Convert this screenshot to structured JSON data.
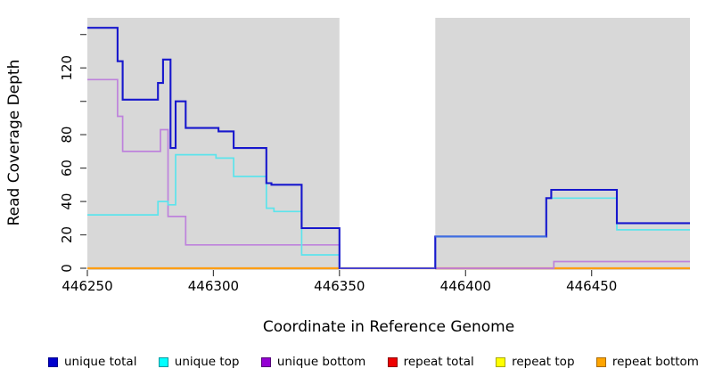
{
  "chart_data": {
    "type": "line",
    "subtype": "step-coverage",
    "title": "",
    "xlabel": "Coordinate in Reference Genome",
    "ylabel": "Read Coverage Depth",
    "xlim": [
      446250,
      446489
    ],
    "ylim": [
      0,
      150
    ],
    "x_ticks": [
      446250,
      446300,
      446350,
      446400,
      446450
    ],
    "y_ticks": [
      0,
      20,
      40,
      60,
      80,
      100,
      120,
      140
    ],
    "y_tick_labels": [
      "0",
      "20",
      "40",
      "60",
      "80",
      "",
      "120",
      ""
    ],
    "grid": false,
    "legend_position": "bottom",
    "background_shading": {
      "color": "#d8d8d8",
      "regions": [
        [
          446250,
          446350
        ],
        [
          446388,
          446489
        ]
      ]
    },
    "series": [
      {
        "name": "unique total",
        "line_color": "#1717cd",
        "legend_fill": "#0000cd",
        "legend_border": "#00008b",
        "lw": 2.1,
        "points": [
          [
            446250,
            144
          ],
          [
            446262,
            124
          ],
          [
            446264,
            101
          ],
          [
            446278,
            111
          ],
          [
            446280,
            125
          ],
          [
            446283,
            72
          ],
          [
            446285,
            100
          ],
          [
            446289,
            84
          ],
          [
            446302,
            82
          ],
          [
            446308,
            72
          ],
          [
            446321,
            51
          ],
          [
            446323,
            50
          ],
          [
            446335,
            24
          ],
          [
            446350,
            0
          ],
          [
            446388,
            19
          ],
          [
            446432,
            42
          ],
          [
            446434,
            47
          ],
          [
            446460,
            27
          ]
        ]
      },
      {
        "name": "unique top",
        "line_color": "#5ce4ec",
        "legend_fill": "#00ffff",
        "legend_border": "#00989f",
        "lw": 1.7,
        "points": [
          [
            446250,
            32
          ],
          [
            446278,
            40
          ],
          [
            446282,
            38
          ],
          [
            446285,
            68
          ],
          [
            446301,
            66
          ],
          [
            446308,
            55
          ],
          [
            446321,
            36
          ],
          [
            446324,
            34
          ],
          [
            446335,
            8
          ],
          [
            446350,
            0
          ],
          [
            446388,
            19
          ],
          [
            446432,
            42
          ],
          [
            446460,
            23
          ]
        ]
      },
      {
        "name": "unique bottom",
        "line_color": "#be82dc",
        "legend_fill": "#9400d3",
        "legend_border": "#530077",
        "lw": 1.7,
        "points": [
          [
            446250,
            113
          ],
          [
            446262,
            91
          ],
          [
            446264,
            70
          ],
          [
            446279,
            83
          ],
          [
            446282,
            31
          ],
          [
            446289,
            14
          ],
          [
            446350,
            0
          ],
          [
            446435,
            4
          ]
        ]
      },
      {
        "name": "repeat total",
        "line_color": "#cd4b6e",
        "legend_fill": "#ee0000",
        "legend_border": "#8b0000",
        "lw": 1.7,
        "points": [
          [
            446250,
            0
          ]
        ]
      },
      {
        "name": "repeat top",
        "line_color": "#ffff00",
        "legend_fill": "#ffff00",
        "legend_border": "#a8a800",
        "lw": 1.7,
        "points": [
          [
            446250,
            0
          ]
        ]
      },
      {
        "name": "repeat bottom",
        "line_color": "#ff9e14",
        "legend_fill": "#ffa500",
        "legend_border": "#a86a00",
        "lw": 2.2,
        "points": [
          [
            446250,
            0
          ]
        ]
      }
    ],
    "draw_order": [
      {
        "series": "repeat top"
      },
      {
        "series": "repeat total"
      },
      {
        "series": "repeat bottom"
      },
      {
        "series": "repeat total",
        "range": [
          446388,
          446435
        ]
      },
      {
        "series": "unique bottom"
      },
      {
        "series": "unique top"
      },
      {
        "series": "unique total"
      },
      {
        "series": "unique total",
        "range": [
          446350,
          446388
        ],
        "color": "#4a44cf"
      },
      {
        "series": "unique total",
        "range": [
          446388,
          446432
        ],
        "color": "#3e6ee1"
      }
    ]
  }
}
